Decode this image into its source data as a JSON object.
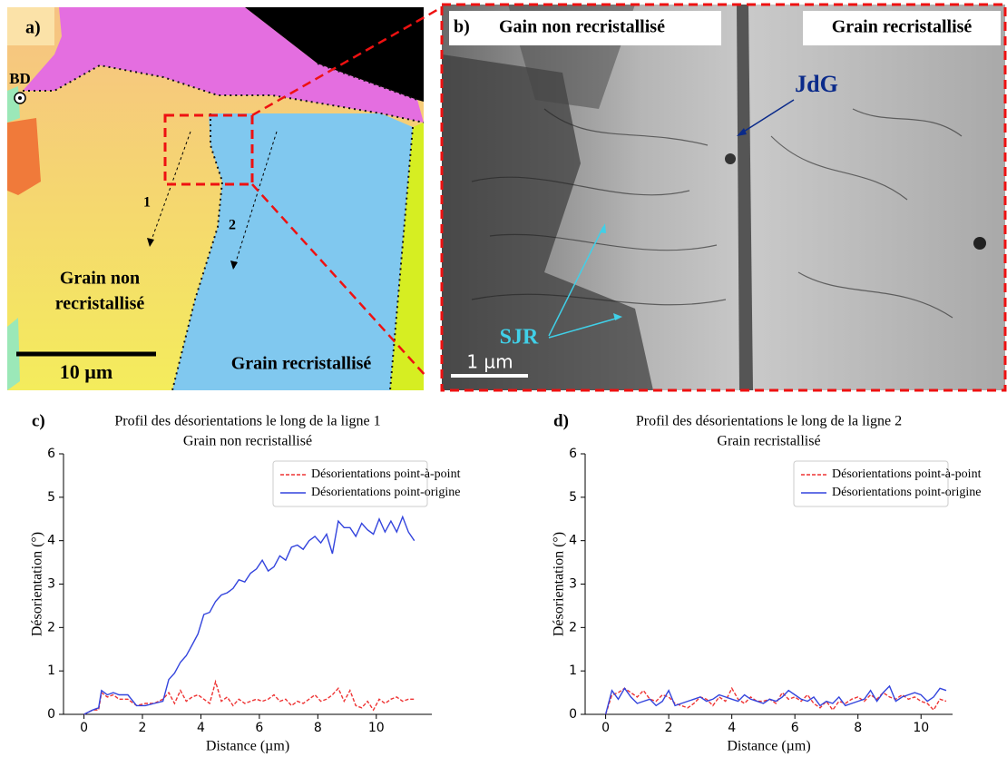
{
  "panel_a": {
    "label": "a)",
    "bd": "BD",
    "line1": "1",
    "line2": "2",
    "unrecrystallized": [
      "Grain non",
      "recristallisé"
    ],
    "recrystallized": "Grain recristallisé",
    "scale": "10 µm"
  },
  "panel_b": {
    "label": "b)",
    "left_grain": "Gain non recristallisé",
    "right_grain": "Grain recristallisé",
    "boundary": "JdG",
    "subboundary": "SJR",
    "scale": "1 µm"
  },
  "chart_data": [
    {
      "type": "line",
      "panel_label": "c)",
      "title": "Profil des désorientations le long de la ligne 1",
      "subtitle": "Grain non recristallisé",
      "x_label": "Distance (µm)",
      "y_label": "Désorientation (°)",
      "legend": "upper right",
      "xlim": [
        -0.7,
        11.9
      ],
      "ylim": [
        0,
        6
      ],
      "xticks": [
        0,
        2,
        4,
        6,
        8,
        10
      ],
      "yticks": [
        0,
        1,
        2,
        3,
        4,
        5,
        6
      ],
      "x": [
        0,
        0.3,
        0.5,
        0.6,
        0.8,
        1.0,
        1.2,
        1.5,
        1.8,
        2.1,
        2.4,
        2.7,
        2.9,
        3.1,
        3.3,
        3.5,
        3.7,
        3.9,
        4.1,
        4.3,
        4.5,
        4.7,
        4.9,
        5.1,
        5.3,
        5.5,
        5.7,
        5.9,
        6.1,
        6.3,
        6.5,
        6.7,
        6.9,
        7.1,
        7.3,
        7.5,
        7.7,
        7.9,
        8.1,
        8.3,
        8.5,
        8.7,
        8.9,
        9.1,
        9.3,
        9.5,
        9.7,
        9.9,
        10.1,
        10.3,
        10.5,
        10.7,
        10.9,
        11.1,
        11.3
      ],
      "series": [
        {
          "name": "Désorientations point-à-point",
          "color": "#ee3333",
          "linestyle": "dashed",
          "values": [
            0,
            0.1,
            0.1,
            0.5,
            0.4,
            0.45,
            0.35,
            0.35,
            0.2,
            0.25,
            0.25,
            0.35,
            0.5,
            0.25,
            0.55,
            0.3,
            0.4,
            0.45,
            0.35,
            0.25,
            0.75,
            0.3,
            0.4,
            0.2,
            0.35,
            0.25,
            0.3,
            0.35,
            0.3,
            0.35,
            0.45,
            0.3,
            0.35,
            0.2,
            0.3,
            0.25,
            0.35,
            0.45,
            0.3,
            0.35,
            0.45,
            0.6,
            0.3,
            0.55,
            0.2,
            0.15,
            0.3,
            0.1,
            0.35,
            0.25,
            0.35,
            0.4,
            0.3,
            0.35,
            0.35
          ]
        },
        {
          "name": "Désorientations point-origine",
          "color": "#3344dd",
          "linestyle": "solid",
          "values": [
            0,
            0.1,
            0.15,
            0.55,
            0.45,
            0.5,
            0.45,
            0.45,
            0.2,
            0.2,
            0.25,
            0.3,
            0.8,
            0.95,
            1.2,
            1.35,
            1.6,
            1.85,
            2.3,
            2.35,
            2.6,
            2.75,
            2.8,
            2.9,
            3.1,
            3.05,
            3.25,
            3.35,
            3.55,
            3.3,
            3.4,
            3.65,
            3.55,
            3.85,
            3.9,
            3.8,
            4.0,
            4.1,
            3.95,
            4.15,
            3.7,
            4.45,
            4.3,
            4.3,
            4.1,
            4.4,
            4.25,
            4.15,
            4.5,
            4.2,
            4.45,
            4.2,
            4.55,
            4.2,
            4.0
          ]
        }
      ]
    },
    {
      "type": "line",
      "panel_label": "d)",
      "title": "Profil des désorientations le long de la ligne 2",
      "subtitle": "Grain recristallisé",
      "x_label": "Distance (µm)",
      "y_label": "Désorientation (°)",
      "legend": "upper right",
      "xlim": [
        -0.65,
        11.0
      ],
      "ylim": [
        0,
        6
      ],
      "xticks": [
        0,
        2,
        4,
        6,
        8,
        10
      ],
      "yticks": [
        0,
        1,
        2,
        3,
        4,
        5,
        6
      ],
      "x": [
        0,
        0.2,
        0.4,
        0.6,
        0.8,
        1.0,
        1.2,
        1.4,
        1.6,
        1.8,
        2.0,
        2.2,
        2.4,
        2.6,
        2.8,
        3.0,
        3.2,
        3.4,
        3.6,
        3.8,
        4.0,
        4.2,
        4.4,
        4.6,
        4.8,
        5.0,
        5.2,
        5.4,
        5.6,
        5.8,
        6.0,
        6.2,
        6.4,
        6.6,
        6.8,
        7.0,
        7.2,
        7.4,
        7.6,
        7.8,
        8.0,
        8.2,
        8.4,
        8.6,
        8.8,
        9.0,
        9.2,
        9.4,
        9.6,
        9.8,
        10.0,
        10.2,
        10.4,
        10.6,
        10.8
      ],
      "series": [
        {
          "name": "Désorientations point-à-point",
          "color": "#ee3333",
          "linestyle": "dashed",
          "values": [
            0,
            0.45,
            0.5,
            0.6,
            0.5,
            0.4,
            0.55,
            0.35,
            0.3,
            0.45,
            0.4,
            0.25,
            0.2,
            0.15,
            0.25,
            0.4,
            0.35,
            0.2,
            0.4,
            0.3,
            0.6,
            0.35,
            0.25,
            0.4,
            0.3,
            0.3,
            0.35,
            0.25,
            0.5,
            0.35,
            0.4,
            0.3,
            0.45,
            0.25,
            0.15,
            0.3,
            0.1,
            0.3,
            0.25,
            0.35,
            0.4,
            0.3,
            0.45,
            0.35,
            0.5,
            0.4,
            0.35,
            0.45,
            0.35,
            0.4,
            0.3,
            0.25,
            0.1,
            0.35,
            0.3
          ]
        },
        {
          "name": "Désorientations point-origine",
          "color": "#3344dd",
          "linestyle": "solid",
          "values": [
            0,
            0.55,
            0.35,
            0.6,
            0.4,
            0.25,
            0.3,
            0.35,
            0.2,
            0.3,
            0.55,
            0.2,
            0.25,
            0.3,
            0.35,
            0.4,
            0.3,
            0.35,
            0.45,
            0.4,
            0.35,
            0.3,
            0.45,
            0.35,
            0.3,
            0.25,
            0.35,
            0.3,
            0.4,
            0.55,
            0.45,
            0.35,
            0.3,
            0.4,
            0.2,
            0.3,
            0.25,
            0.4,
            0.2,
            0.25,
            0.3,
            0.35,
            0.55,
            0.3,
            0.5,
            0.65,
            0.3,
            0.4,
            0.45,
            0.5,
            0.45,
            0.3,
            0.4,
            0.6,
            0.55
          ]
        }
      ]
    }
  ]
}
